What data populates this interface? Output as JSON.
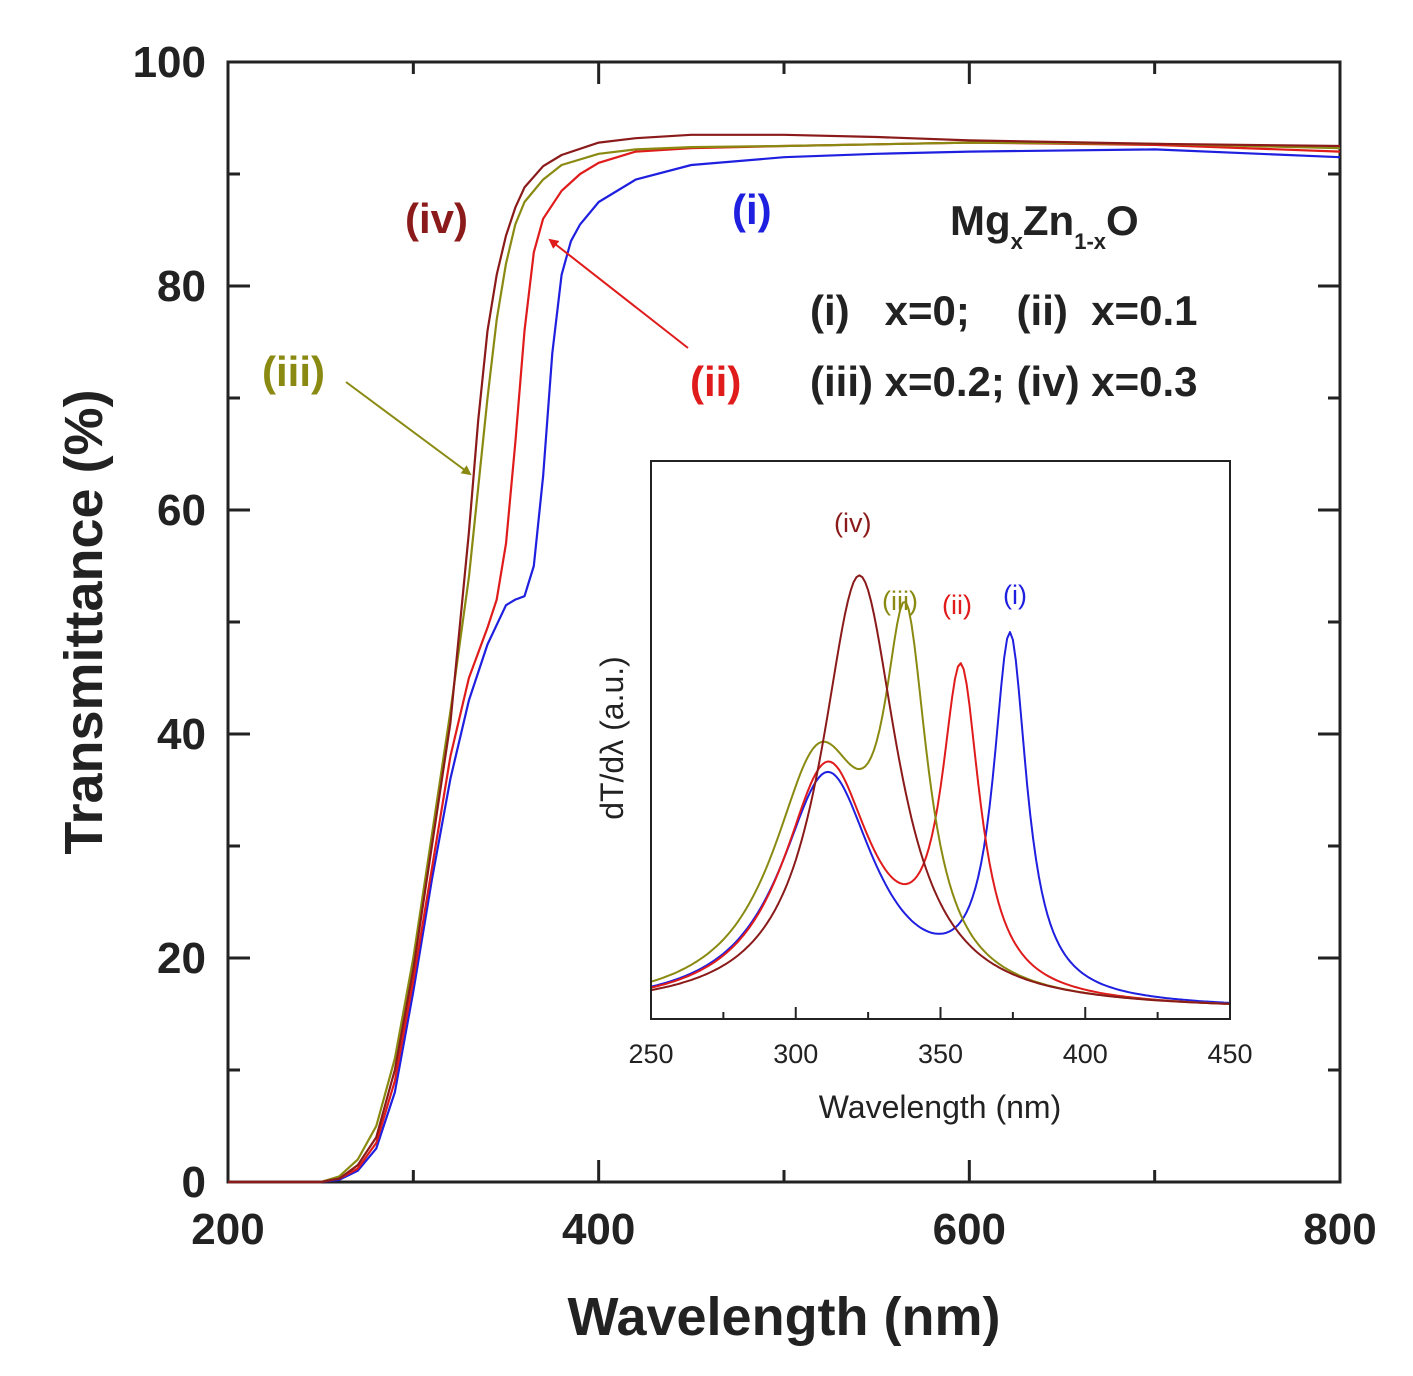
{
  "chart_data": [
    {
      "id": "main",
      "type": "line",
      "title": "",
      "xlabel": "Wavelength (nm)",
      "ylabel": "Transmittance (%)",
      "xlim": [
        200,
        800
      ],
      "ylim": [
        0,
        100
      ],
      "xticks": [
        200,
        400,
        600,
        800
      ],
      "xtick_labels": [
        "200",
        "400",
        "600",
        "800"
      ],
      "yticks": [
        0,
        20,
        40,
        60,
        80,
        100
      ],
      "ytick_labels": [
        "0",
        "20",
        "40",
        "60",
        "80",
        "100"
      ],
      "grid": false,
      "series": [
        {
          "name": "(i)",
          "label": "(i)",
          "color": "#1f1fe0",
          "x": [
            200,
            250,
            260,
            270,
            280,
            290,
            300,
            310,
            320,
            330,
            340,
            350,
            355,
            360,
            365,
            370,
            375,
            380,
            385,
            390,
            400,
            420,
            450,
            500,
            550,
            600,
            700,
            800
          ],
          "y": [
            0,
            0,
            0.2,
            1,
            3,
            8,
            17,
            27,
            36,
            43,
            48,
            51.5,
            52,
            52.3,
            55,
            63,
            74,
            81,
            84,
            85.5,
            87.5,
            89.5,
            90.8,
            91.5,
            91.8,
            92,
            92.2,
            91.5
          ]
        },
        {
          "name": "(ii)",
          "label": "(ii)",
          "color": "#e01b1b",
          "x": [
            200,
            250,
            260,
            270,
            280,
            290,
            300,
            310,
            320,
            330,
            340,
            345,
            350,
            355,
            360,
            365,
            370,
            380,
            390,
            400,
            420,
            450,
            500,
            600,
            700,
            800
          ],
          "y": [
            0,
            0,
            0.3,
            1.2,
            3.5,
            9,
            18,
            28,
            38,
            45,
            49.5,
            52,
            57,
            66,
            76,
            83,
            86,
            88.5,
            90,
            91,
            92,
            92.3,
            92.5,
            92.8,
            92.6,
            92
          ]
        },
        {
          "name": "(iii)",
          "label": "(iii)",
          "color": "#8a8a12",
          "x": [
            200,
            250,
            260,
            270,
            280,
            290,
            300,
            310,
            320,
            330,
            335,
            340,
            345,
            350,
            355,
            360,
            370,
            380,
            400,
            420,
            450,
            500,
            600,
            700,
            800
          ],
          "y": [
            0,
            0,
            0.5,
            2,
            5,
            11,
            20,
            31,
            42,
            54,
            62,
            70,
            77,
            82,
            85.5,
            87.5,
            89.5,
            90.8,
            91.8,
            92.2,
            92.4,
            92.5,
            92.8,
            92.7,
            92.3
          ]
        },
        {
          "name": "(iv)",
          "label": "(iv)",
          "color": "#8b1a1a",
          "x": [
            200,
            250,
            260,
            270,
            280,
            290,
            300,
            310,
            320,
            330,
            335,
            340,
            345,
            350,
            355,
            360,
            370,
            380,
            400,
            420,
            450,
            500,
            550,
            600,
            700,
            800
          ],
          "y": [
            0,
            0,
            0.3,
            1.5,
            4,
            10,
            19,
            30,
            41,
            58,
            68,
            76,
            81,
            84.5,
            87,
            88.8,
            90.7,
            91.7,
            92.8,
            93.2,
            93.5,
            93.5,
            93.3,
            93,
            92.7,
            92.5
          ]
        }
      ],
      "annotations": [
        {
          "text": "(i)",
          "color": "#1f1fe0"
        },
        {
          "text": "(ii)",
          "color": "#e01b1b"
        },
        {
          "text": "(iii)",
          "color": "#8a8a12"
        },
        {
          "text": "(iv)",
          "color": "#8b1a1a"
        }
      ]
    },
    {
      "id": "inset",
      "type": "line",
      "title": "",
      "xlabel": "Wavelength (nm)",
      "ylabel": "dT/dλ (a.u.)",
      "xlim": [
        250,
        450
      ],
      "ylim": [
        0,
        1
      ],
      "xticks": [
        250,
        300,
        350,
        400,
        450
      ],
      "xtick_labels": [
        "250",
        "300",
        "350",
        "400",
        "450"
      ],
      "grid": false,
      "series": [
        {
          "name": "(i)",
          "label": "(i)",
          "color": "#1f1fe0",
          "peaks": [
            [
              311,
              0.42,
              20
            ],
            [
              374,
              0.64,
              7
            ]
          ]
        },
        {
          "name": "(ii)",
          "label": "(ii)",
          "color": "#e01b1b",
          "peaks": [
            [
              311,
              0.43,
              19
            ],
            [
              357,
              0.56,
              8
            ]
          ]
        },
        {
          "name": "(iii)",
          "label": "(iii)",
          "color": "#8a8a12",
          "peaks": [
            [
              308,
              0.43,
              20
            ],
            [
              338,
              0.6,
              9
            ]
          ]
        },
        {
          "name": "(iv)",
          "label": "(iv)",
          "color": "#8b1a1a",
          "peaks": [
            [
              322,
              0.78,
              16
            ]
          ]
        }
      ]
    }
  ],
  "legend": {
    "formula_base1": "Mg",
    "formula_sub1": "x",
    "formula_base2": "Zn",
    "formula_sub2": "1-x",
    "formula_base3": "O",
    "line1": "(i)   x=0;    (ii)  x=0.1",
    "line2": "(iii) x=0.2; (iv) x=0.3"
  }
}
